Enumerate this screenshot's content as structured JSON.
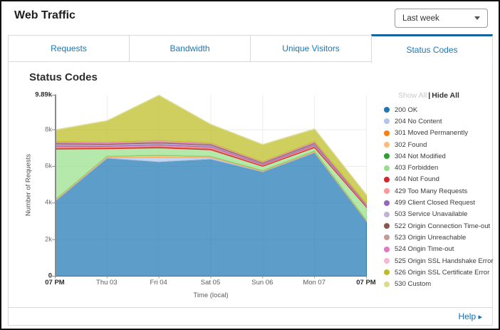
{
  "header": {
    "title": "Web Traffic",
    "range_selector": "Last week"
  },
  "tabs": [
    {
      "label": "Requests",
      "active": false
    },
    {
      "label": "Bandwidth",
      "active": false
    },
    {
      "label": "Unique Visitors",
      "active": false
    },
    {
      "label": "Status Codes",
      "active": true
    }
  ],
  "panel": {
    "title": "Status Codes"
  },
  "legend": {
    "show_all": "Show All",
    "divider": "|",
    "hide_all": "Hide All"
  },
  "footer": {
    "help_label": "Help",
    "help_arrow": "▸"
  },
  "colors": {
    "accent_blue": "#1466a3",
    "link_blue": "#1d76b5",
    "help_blue": "#0d6fb8"
  },
  "chart_data": {
    "type": "area",
    "stacked": true,
    "title": "Status Codes",
    "xlabel": "Time (local)",
    "ylabel": "Number of Requests",
    "grid": true,
    "legend_position": "right",
    "ylim": [
      0,
      9890
    ],
    "yticks": [
      {
        "v": 0,
        "label": "0"
      },
      {
        "v": 2000,
        "label": "2k"
      },
      {
        "v": 4000,
        "label": "4k"
      },
      {
        "v": 6000,
        "label": "6k"
      },
      {
        "v": 8000,
        "label": "8k"
      },
      {
        "v": 9890,
        "label": "9.89k"
      }
    ],
    "x": [
      "07 PM",
      "Thu 03",
      "Fri 04",
      "Sat 05",
      "Sun 06",
      "Mon 07",
      "07 PM"
    ],
    "series": [
      {
        "name": "200 OK",
        "color": "#1f77b4",
        "values": [
          4100,
          6450,
          6250,
          6400,
          5700,
          6750,
          3000
        ]
      },
      {
        "name": "204 No Content",
        "color": "#aec7e8",
        "values": [
          20,
          40,
          250,
          80,
          30,
          30,
          20
        ]
      },
      {
        "name": "301 Moved Permanently",
        "color": "#ff7f0e",
        "values": [
          10,
          10,
          10,
          10,
          10,
          10,
          10
        ]
      },
      {
        "name": "302 Found",
        "color": "#ffbb78",
        "values": [
          50,
          50,
          90,
          50,
          30,
          40,
          30
        ]
      },
      {
        "name": "304 Not Modified",
        "color": "#2ca02c",
        "values": [
          10,
          10,
          10,
          10,
          10,
          10,
          10
        ]
      },
      {
        "name": "403 Forbidden",
        "color": "#98df8a",
        "values": [
          2750,
          400,
          400,
          350,
          220,
          180,
          700
        ]
      },
      {
        "name": "404 Not Found",
        "color": "#d62728",
        "values": [
          90,
          80,
          90,
          90,
          60,
          80,
          50
        ]
      },
      {
        "name": "429 Too Many Requests",
        "color": "#ff9896",
        "values": [
          60,
          50,
          60,
          60,
          40,
          50,
          30
        ]
      },
      {
        "name": "499 Client Closed Request",
        "color": "#9467bd",
        "values": [
          70,
          60,
          60,
          60,
          40,
          50,
          30
        ]
      },
      {
        "name": "503 Service Unavailable",
        "color": "#c5b0d5",
        "values": [
          60,
          50,
          50,
          50,
          30,
          40,
          20
        ]
      },
      {
        "name": "522 Origin Connection Time-out",
        "color": "#8c564b",
        "values": [
          50,
          40,
          40,
          40,
          30,
          40,
          20
        ]
      },
      {
        "name": "523 Origin Unreachable",
        "color": "#c49c94",
        "values": [
          40,
          30,
          30,
          30,
          20,
          30,
          20
        ]
      },
      {
        "name": "524 Origin Time-out",
        "color": "#e377c2",
        "values": [
          30,
          30,
          40,
          30,
          20,
          30,
          20
        ]
      },
      {
        "name": "525 Origin SSL Handshake Error",
        "color": "#f7b6d2",
        "values": [
          20,
          20,
          30,
          20,
          20,
          20,
          10
        ]
      },
      {
        "name": "526 Origin SSL Certificate Error",
        "color": "#bcbd22",
        "values": [
          600,
          1150,
          2450,
          990,
          910,
          650,
          450
        ]
      },
      {
        "name": "530 Custom",
        "color": "#dbdb8d",
        "values": [
          40,
          30,
          30,
          30,
          30,
          40,
          30
        ]
      }
    ]
  }
}
